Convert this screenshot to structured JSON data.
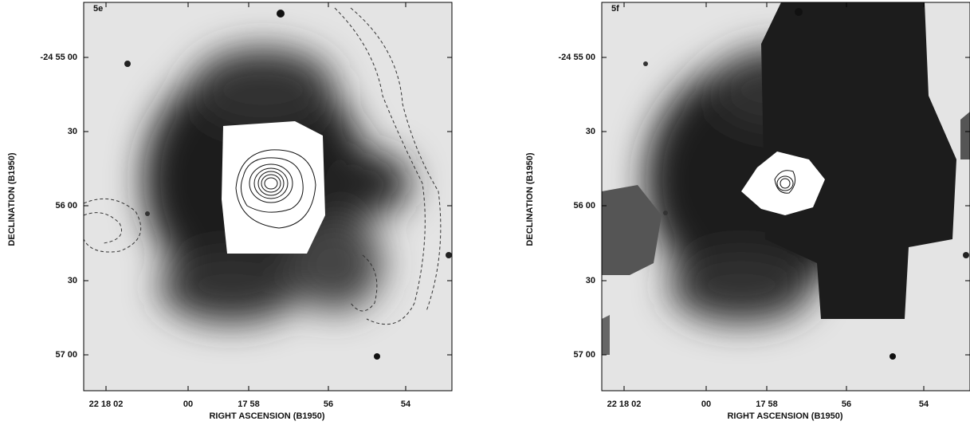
{
  "panels": [
    {
      "label": "5e",
      "y_title": "DECLINATION (B1950)",
      "y_ticks": [
        "-24 55 00",
        "30",
        "56 00",
        "30",
        "57 00"
      ],
      "x_title": "RIGHT ASCENSION (B1950)",
      "x_ticks": [
        "22 18 02",
        "00",
        "17 58",
        "56",
        "54"
      ]
    },
    {
      "label": "5f",
      "y_title": "DECLINATION (B1950)",
      "y_ticks": [
        "-24 55 00",
        "30",
        "56 00",
        "30",
        "57 00"
      ],
      "x_title": "RIGHT ASCENSION (B1950)",
      "x_ticks": [
        "22 18 02",
        "00",
        "17 58",
        "56",
        "54"
      ]
    }
  ]
}
